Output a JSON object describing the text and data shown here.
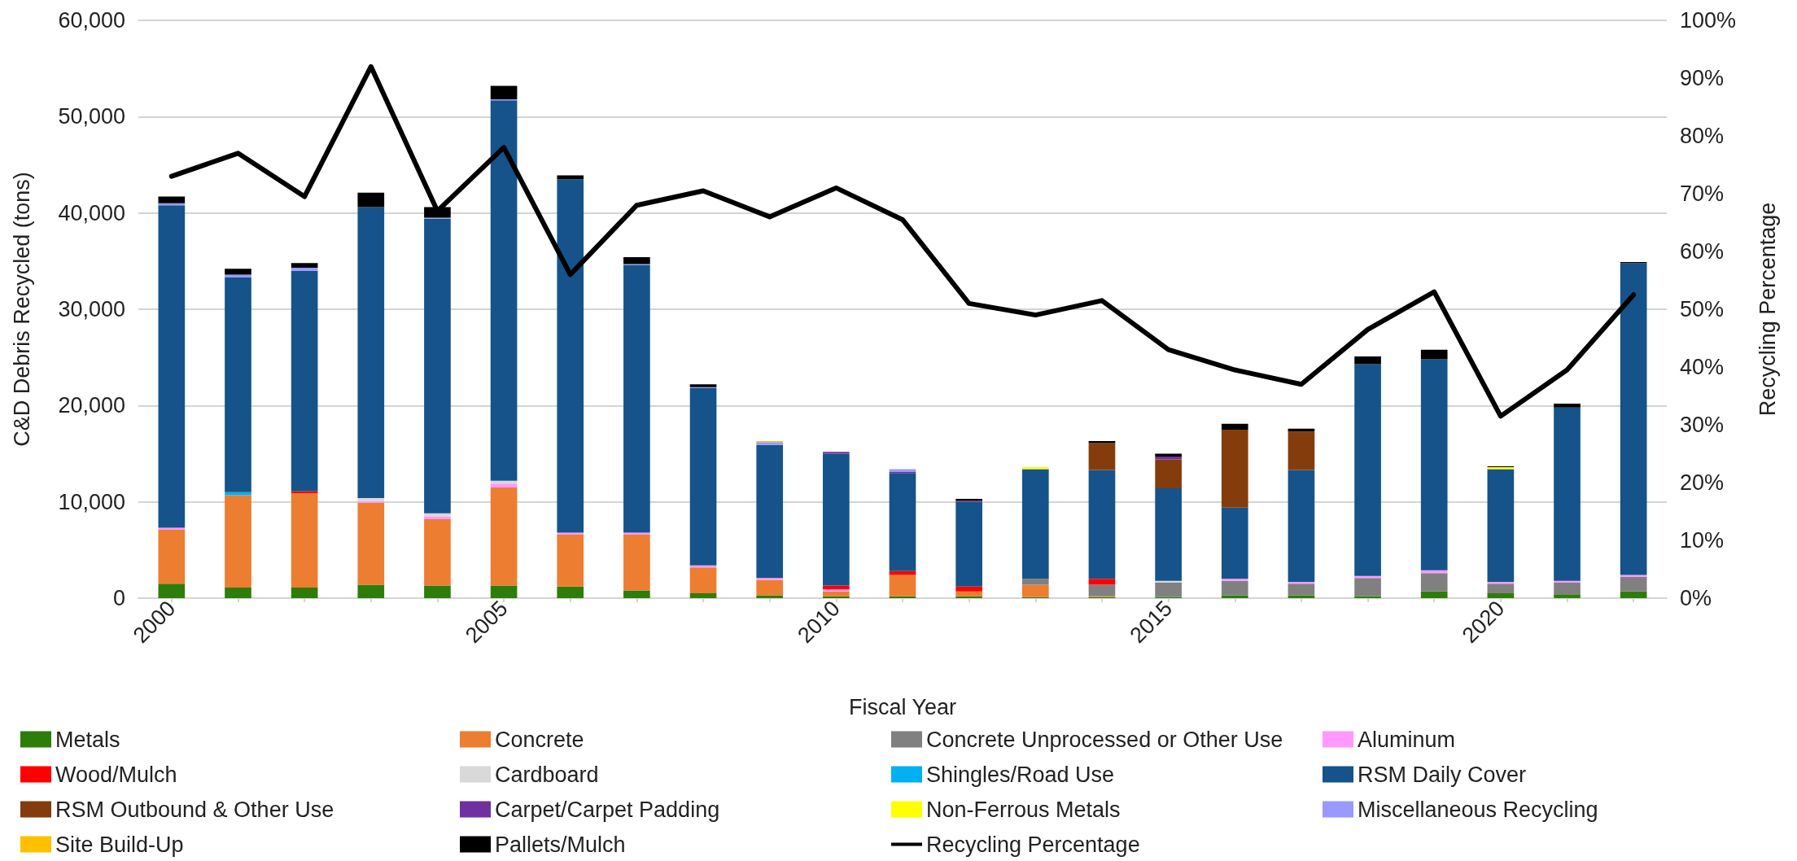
{
  "chart_data": {
    "type": "bar",
    "stacked": true,
    "xlabel": "Fiscal Year",
    "ylabel": "C&D Debris Recycled (tons)",
    "y2label": "Recycling Percentage",
    "categories": [
      "2000",
      null,
      null,
      null,
      null,
      "2005",
      null,
      null,
      null,
      null,
      "2010",
      null,
      null,
      null,
      null,
      "2015",
      null,
      null,
      null,
      null,
      "2020",
      null,
      null
    ],
    "ylim": [
      0,
      60000
    ],
    "yticks": [
      0,
      {
        "value": 10000,
        "label": "10,000"
      },
      {
        "value": 20000,
        "label": "20,000"
      },
      {
        "value": 30000,
        "label": "30,000"
      },
      {
        "value": 40000,
        "label": "40,000"
      },
      {
        "value": 50000,
        "label": "50,000"
      },
      {
        "value": 60000,
        "label": "60,000"
      }
    ],
    "y2lim": [
      0,
      100
    ],
    "y2ticks": [
      {
        "value": 0,
        "label": "0%"
      },
      {
        "value": 10,
        "label": "10%"
      },
      {
        "value": 20,
        "label": "20%"
      },
      {
        "value": 30,
        "label": "30%"
      },
      {
        "value": 40,
        "label": "40%"
      },
      {
        "value": 50,
        "label": "50%"
      },
      {
        "value": 60,
        "label": "60%"
      },
      {
        "value": 70,
        "label": "70%"
      },
      {
        "value": 80,
        "label": "80%"
      },
      {
        "value": 90,
        "label": "90%"
      },
      {
        "value": 100,
        "label": "100%"
      }
    ],
    "grid": "y",
    "legend": "bottom",
    "series": [
      {
        "name": "Metals",
        "color": "#2e7d0a",
        "values": [
          1500,
          1100,
          1100,
          1400,
          1300,
          1300,
          1200,
          800,
          500,
          300,
          200,
          200,
          200,
          100,
          100,
          100,
          300,
          300,
          200,
          700,
          500,
          400,
          700
        ]
      },
      {
        "name": "Concrete",
        "color": "#ed7d31",
        "values": [
          5600,
          9600,
          9800,
          8500,
          6900,
          10200,
          5400,
          5800,
          2700,
          1600,
          500,
          2200,
          500,
          1300,
          100,
          null,
          null,
          null,
          null,
          null,
          null,
          null,
          null
        ]
      },
      {
        "name": "Concrete Unprocessed or Other Use",
        "color": "#808080",
        "values": [
          null,
          null,
          null,
          null,
          null,
          null,
          null,
          null,
          null,
          null,
          null,
          null,
          null,
          600,
          1200,
          1500,
          1500,
          1200,
          1900,
          1900,
          1000,
          1200,
          1500
        ]
      },
      {
        "name": "Aluminum",
        "color": "#ff99ff",
        "values": [
          200,
          null,
          null,
          200,
          300,
          400,
          200,
          200,
          200,
          200,
          200,
          null,
          null,
          null,
          null,
          null,
          200,
          200,
          200,
          300,
          200,
          200,
          200
        ]
      },
      {
        "name": "Wood/Mulch",
        "color": "#ff0000",
        "values": [
          null,
          null,
          200,
          null,
          null,
          null,
          null,
          null,
          null,
          null,
          400,
          400,
          500,
          null,
          600,
          null,
          null,
          null,
          null,
          null,
          null,
          null,
          null
        ]
      },
      {
        "name": "Cardboard",
        "color": "#d9d9d9",
        "values": [
          null,
          null,
          null,
          300,
          300,
          300,
          null,
          null,
          null,
          null,
          null,
          null,
          null,
          null,
          null,
          200,
          null,
          null,
          null,
          null,
          null,
          null,
          null
        ]
      },
      {
        "name": "Shingles/Road Use",
        "color": "#00b0f0",
        "values": [
          null,
          300,
          null,
          null,
          null,
          null,
          null,
          null,
          null,
          null,
          null,
          null,
          null,
          null,
          null,
          null,
          null,
          null,
          null,
          null,
          null,
          null,
          null
        ]
      },
      {
        "name": "RSM Daily Cover",
        "color": "#15538a",
        "values": [
          33500,
          22300,
          22900,
          30200,
          30600,
          39500,
          36700,
          27800,
          18400,
          13800,
          13700,
          10200,
          8800,
          11400,
          11300,
          9600,
          7400,
          11600,
          22000,
          21900,
          11700,
          18000,
          32400
        ]
      },
      {
        "name": "RSM Outbound & Other Use",
        "color": "#843c0c",
        "values": [
          null,
          null,
          null,
          null,
          null,
          null,
          null,
          null,
          null,
          null,
          null,
          null,
          null,
          null,
          2800,
          3000,
          8100,
          4000,
          null,
          null,
          null,
          null,
          null
        ]
      },
      {
        "name": "Carpet/Carpet Padding",
        "color": "#7030a0",
        "values": [
          null,
          null,
          null,
          null,
          null,
          null,
          null,
          null,
          null,
          null,
          200,
          100,
          100,
          null,
          null,
          300,
          null,
          null,
          null,
          null,
          null,
          null,
          null
        ]
      },
      {
        "name": "Non-Ferrous Metals",
        "color": "#ffff00",
        "values": [
          null,
          null,
          null,
          null,
          null,
          null,
          null,
          null,
          null,
          null,
          null,
          null,
          null,
          200,
          null,
          null,
          null,
          null,
          null,
          null,
          200,
          null,
          null
        ]
      },
      {
        "name": "Miscellaneous Recycling",
        "color": "#9999ff",
        "values": [
          200,
          300,
          300,
          null,
          100,
          100,
          null,
          100,
          100,
          300,
          null,
          300,
          null,
          null,
          null,
          null,
          null,
          null,
          null,
          null,
          null,
          null,
          null
        ]
      },
      {
        "name": "Site Build-Up",
        "color": "#ffc000",
        "values": [
          null,
          null,
          null,
          null,
          null,
          null,
          null,
          null,
          null,
          100,
          null,
          null,
          null,
          null,
          null,
          null,
          null,
          null,
          null,
          null,
          null,
          null,
          null
        ]
      },
      {
        "name": "Pallets/Mulch",
        "color": "#000000",
        "values": [
          700,
          600,
          500,
          1500,
          1100,
          1400,
          400,
          700,
          300,
          null,
          null,
          null,
          200,
          null,
          200,
          300,
          600,
          300,
          800,
          1000,
          100,
          400,
          100
        ]
      },
      {
        "name": "Recycling Percentage",
        "type": "line",
        "axis": "y2",
        "color": "#000000",
        "marker": "none",
        "line_style": "solid",
        "values": [
          73,
          77,
          69.5,
          92,
          67,
          78,
          56,
          68,
          70.5,
          66,
          71,
          65.5,
          51,
          49,
          51.5,
          43,
          39.5,
          37,
          46.5,
          53,
          31.5,
          39.5,
          52.5
        ]
      }
    ]
  }
}
